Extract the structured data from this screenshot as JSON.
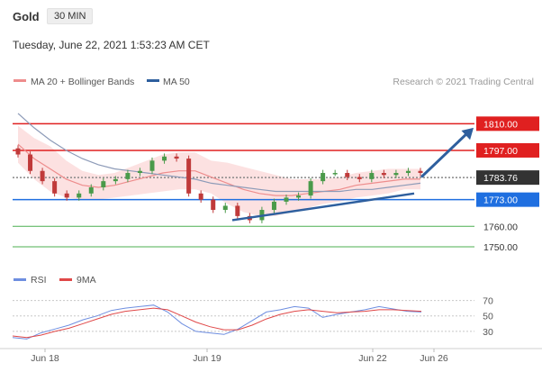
{
  "header": {
    "instrument": "Gold",
    "timeframe": "30 MIN",
    "timestamp": "Tuesday, June 22, 2021 1:53:23 AM CET"
  },
  "legend": {
    "ma20_label": "MA 20 + Bollinger Bands",
    "ma50_label": "MA 50",
    "credit": "Research © 2021 Trading Central",
    "rsi_label": "RSI",
    "rsi_ma_label": "9MA"
  },
  "colors": {
    "resistance": "#e02020",
    "support": "#1f6fe0",
    "support_secondary": "#4caf50",
    "last_price": "#333333",
    "arrow": "#2e5f9e",
    "bollinger_fill": "#f9c8c8",
    "ma20": "#ee8d8d",
    "ma50": "#8d9bb8",
    "candle_up": "#4a9a4a",
    "candle_down": "#c03a3a",
    "rsi": "#6e8ee0",
    "rsi_ma": "#e04848"
  },
  "chart_data": [
    {
      "type": "line",
      "title": "Gold 30 MIN",
      "x_ticks": [
        "Jun 18",
        "Jun 19",
        "Jun 22",
        "Jun 26"
      ],
      "ylim": [
        1743,
        1822
      ],
      "series": [
        {
          "name": "MA 20 + Bollinger Bands",
          "values": [
            1800,
            1793,
            1788,
            1783,
            1780,
            1779,
            1780,
            1782,
            1784,
            1786,
            1787,
            1787,
            1784,
            1781,
            1778,
            1776,
            1775,
            1775,
            1776,
            1777,
            1778,
            1780,
            1781,
            1782,
            1783,
            1783
          ]
        },
        {
          "name": "MA 50",
          "values": [
            1815,
            1808,
            1802,
            1797,
            1793,
            1790,
            1788,
            1787,
            1786,
            1785,
            1784,
            1783,
            1781,
            1780,
            1779,
            1778,
            1777,
            1777,
            1777,
            1777,
            1777,
            1778,
            1778,
            1779,
            1780,
            1781
          ]
        }
      ],
      "price_candles_close": [
        1795,
        1787,
        1782,
        1776,
        1774,
        1776,
        1779,
        1782,
        1783,
        1786,
        1787,
        1792,
        1794,
        1793,
        1776,
        1773,
        1768,
        1770,
        1765,
        1763,
        1768,
        1772,
        1774,
        1775,
        1782,
        1786,
        1786,
        1784,
        1783,
        1786,
        1785,
        1786,
        1787,
        1786
      ],
      "levels": [
        {
          "value": 1810.0,
          "label": "1810.00",
          "kind": "resistance"
        },
        {
          "value": 1797.0,
          "label": "1797.00",
          "kind": "resistance"
        },
        {
          "value": 1783.76,
          "label": "1783.76",
          "kind": "last"
        },
        {
          "value": 1773.0,
          "label": "1773.00",
          "kind": "support"
        },
        {
          "value": 1760.0,
          "label": "1760.00",
          "kind": "support-secondary"
        },
        {
          "value": 1750.0,
          "label": "1750.00",
          "kind": "support-secondary"
        }
      ],
      "trendline": {
        "from": {
          "x": "Jun 19",
          "y": 1763
        },
        "to": {
          "x": "Jun 22",
          "y": 1776
        }
      },
      "projection_arrow": {
        "from_price": 1784,
        "to_price": 1808
      }
    },
    {
      "type": "line",
      "title": "RSI",
      "ylim": [
        10,
        80
      ],
      "y_ticks": [
        70,
        50,
        30
      ],
      "series": [
        {
          "name": "RSI",
          "values": [
            22,
            20,
            28,
            33,
            38,
            45,
            50,
            57,
            60,
            62,
            64,
            55,
            40,
            30,
            28,
            26,
            33,
            44,
            55,
            58,
            62,
            60,
            48,
            52,
            55,
            58,
            62,
            59,
            56,
            55
          ]
        },
        {
          "name": "9MA",
          "values": [
            24,
            22,
            25,
            30,
            34,
            40,
            46,
            52,
            56,
            58,
            60,
            58,
            50,
            42,
            36,
            32,
            32,
            38,
            46,
            52,
            56,
            58,
            56,
            54,
            55,
            56,
            58,
            58,
            57,
            56
          ]
        }
      ]
    }
  ]
}
